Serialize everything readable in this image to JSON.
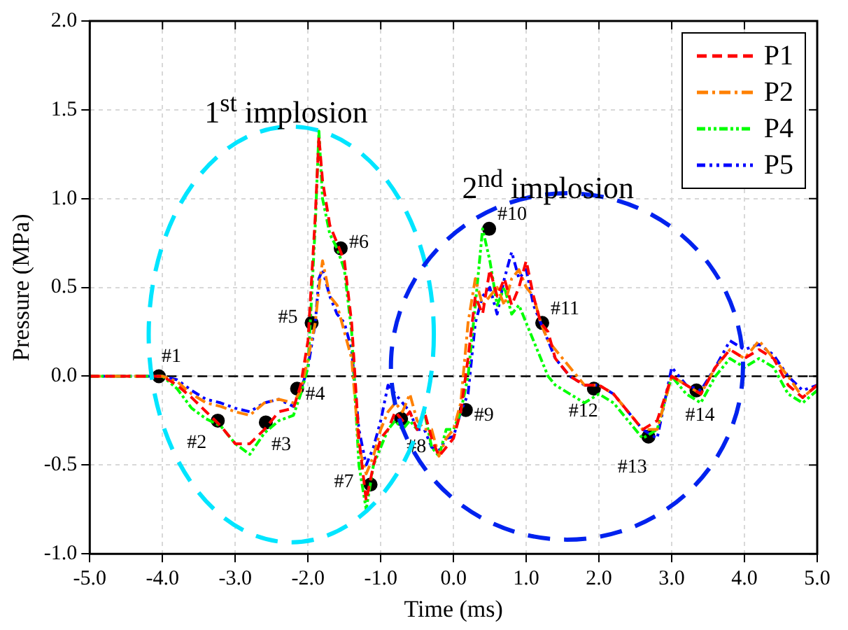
{
  "chart_data": {
    "type": "line",
    "xlabel": "Time (ms)",
    "ylabel": "Pressure (MPa)",
    "x": [
      -5,
      -4.6,
      -4.2,
      -4.0,
      -3.8,
      -3.6,
      -3.4,
      -3.2,
      -3.0,
      -2.8,
      -2.6,
      -2.4,
      -2.2,
      -2.1,
      -2.0,
      -1.9,
      -1.85,
      -1.8,
      -1.7,
      -1.6,
      -1.5,
      -1.4,
      -1.3,
      -1.2,
      -1.1,
      -1.0,
      -0.9,
      -0.8,
      -0.7,
      -0.6,
      -0.5,
      -0.4,
      -0.3,
      -0.2,
      -0.1,
      0,
      0.1,
      0.2,
      0.3,
      0.4,
      0.5,
      0.6,
      0.7,
      0.8,
      0.9,
      1.0,
      1.1,
      1.2,
      1.3,
      1.4,
      1.6,
      1.8,
      2.0,
      2.2,
      2.4,
      2.6,
      2.8,
      3.0,
      3.2,
      3.4,
      3.6,
      3.8,
      4.0,
      4.2,
      4.4,
      4.6,
      4.8,
      5.0
    ],
    "series": [
      {
        "name": "P1",
        "color": "#ff0000",
        "line_style": "dashed",
        "values": [
          0,
          0,
          0,
          0,
          -0.05,
          -0.12,
          -0.2,
          -0.28,
          -0.38,
          -0.38,
          -0.3,
          -0.2,
          -0.18,
          -0.05,
          0.2,
          0.9,
          1.35,
          1.1,
          0.85,
          0.75,
          0.65,
          0.3,
          -0.35,
          -0.7,
          -0.5,
          -0.35,
          -0.3,
          -0.2,
          -0.25,
          -0.2,
          -0.3,
          -0.2,
          -0.35,
          -0.45,
          -0.4,
          -0.35,
          -0.2,
          0.1,
          0.45,
          0.35,
          0.6,
          0.45,
          0.55,
          0.4,
          0.5,
          0.65,
          0.45,
          0.3,
          0.25,
          0.1,
          0,
          -0.05,
          -0.05,
          -0.1,
          -0.2,
          -0.3,
          -0.25,
          0,
          -0.05,
          -0.1,
          0.05,
          0.15,
          0.1,
          0.15,
          0.1,
          -0.05,
          -0.12,
          -0.05
        ]
      },
      {
        "name": "P2",
        "color": "#ff8000",
        "line_style": "dashed",
        "values": [
          0,
          0,
          0,
          0,
          -0.03,
          -0.1,
          -0.15,
          -0.17,
          -0.2,
          -0.22,
          -0.15,
          -0.13,
          -0.15,
          -0.08,
          0.1,
          0.3,
          0.5,
          0.65,
          0.45,
          0.4,
          0.25,
          0.1,
          -0.4,
          -0.55,
          -0.45,
          -0.3,
          -0.2,
          -0.15,
          -0.2,
          -0.1,
          -0.25,
          -0.3,
          -0.3,
          -0.45,
          -0.35,
          -0.3,
          -0.15,
          0.3,
          0.55,
          0.4,
          0.45,
          0.5,
          0.4,
          0.55,
          0.6,
          0.5,
          0.45,
          0.3,
          0.2,
          0.15,
          0.05,
          -0.05,
          -0.05,
          -0.1,
          -0.2,
          -0.3,
          -0.3,
          0,
          -0.05,
          -0.1,
          0.05,
          0.15,
          0.1,
          0.2,
          0.1,
          0,
          -0.12,
          -0.05
        ]
      },
      {
        "name": "P4",
        "color": "#00ff00",
        "line_style": "dashed",
        "values": [
          0,
          0,
          0,
          0,
          -0.07,
          -0.18,
          -0.24,
          -0.28,
          -0.38,
          -0.44,
          -0.32,
          -0.25,
          -0.22,
          -0.1,
          0.05,
          0.85,
          1.38,
          1.0,
          0.8,
          0.72,
          0.6,
          0.25,
          -0.5,
          -0.75,
          -0.5,
          -0.4,
          -0.3,
          -0.25,
          -0.3,
          -0.25,
          -0.3,
          -0.2,
          -0.4,
          -0.45,
          -0.3,
          -0.3,
          -0.2,
          0,
          0.4,
          0.83,
          0.65,
          0.4,
          0.5,
          0.35,
          0.4,
          0.3,
          0.2,
          0.1,
          0,
          -0.05,
          -0.1,
          -0.15,
          -0.1,
          -0.15,
          -0.25,
          -0.35,
          -0.3,
          0,
          -0.1,
          -0.15,
          0,
          0.1,
          0.05,
          0.1,
          0.05,
          -0.1,
          -0.15,
          -0.08
        ]
      },
      {
        "name": "P5",
        "color": "#0000ff",
        "line_style": "dashed",
        "values": [
          0,
          0,
          0,
          0,
          -0.02,
          -0.08,
          -0.13,
          -0.15,
          -0.18,
          -0.2,
          -0.15,
          -0.13,
          -0.17,
          -0.08,
          0.05,
          0.3,
          0.55,
          0.6,
          0.45,
          0.35,
          0.3,
          0.15,
          -0.3,
          -0.5,
          -0.4,
          -0.25,
          -0.05,
          -0.1,
          -0.15,
          -0.2,
          -0.3,
          -0.3,
          -0.4,
          -0.42,
          -0.35,
          -0.34,
          -0.2,
          -0.1,
          0.3,
          0.45,
          0.5,
          0.35,
          0.55,
          0.7,
          0.55,
          0.6,
          0.4,
          0.3,
          0.2,
          0.1,
          0,
          -0.05,
          -0.05,
          -0.1,
          -0.2,
          -0.3,
          -0.35,
          0.05,
          -0.05,
          -0.08,
          0.05,
          0.2,
          0.15,
          0.18,
          0.12,
          0,
          -0.08,
          -0.05
        ]
      },
      {
        "type": "scatter",
        "color": "#000000",
        "marker": "circle",
        "x": [
          -4.05,
          -3.24,
          -2.58,
          -2.15,
          -1.95,
          -1.55,
          -1.14,
          -0.72,
          0.17,
          0.49,
          1.22,
          1.93,
          2.68,
          3.34
        ],
        "values": [
          0,
          -0.25,
          -0.26,
          -0.07,
          0.3,
          0.72,
          -0.61,
          -0.24,
          -0.19,
          0.83,
          0.3,
          -0.07,
          -0.34,
          -0.08
        ]
      }
    ],
    "xlim": [
      -5,
      5
    ],
    "xticks": [
      {
        "value": -5,
        "label": "-5.0"
      },
      {
        "value": -4,
        "label": "-4.0"
      },
      {
        "value": -3,
        "label": "-3.0"
      },
      {
        "value": -2,
        "label": "-2.0"
      },
      {
        "value": -1,
        "label": "-1.0"
      },
      {
        "value": 0,
        "label": "0.0"
      },
      {
        "value": 1,
        "label": "1.0"
      },
      {
        "value": 2,
        "label": "2.0"
      },
      {
        "value": 3,
        "label": "3.0"
      },
      {
        "value": 4,
        "label": "4.0"
      },
      {
        "value": 5,
        "label": "5.0"
      }
    ],
    "ylim": [
      -1,
      2
    ],
    "yticks": [
      {
        "value": -1,
        "label": "-1.0"
      },
      {
        "value": -0.5,
        "label": "-0.5"
      },
      {
        "value": 0,
        "label": "0.0"
      },
      {
        "value": 0.5,
        "label": "0.5"
      },
      {
        "value": 1,
        "label": "1.0"
      },
      {
        "value": 1.5,
        "label": "1.5"
      },
      {
        "value": 2,
        "label": "2.0"
      }
    ],
    "ref_lines": [
      {
        "axis": "y",
        "value": 0,
        "color": "#000000",
        "line_style": "dashed"
      }
    ],
    "annotations": [
      "1$^{st}$ implosion",
      "2$^{nd}$ implosion",
      {
        "text": "#1",
        "x": -4.05,
        "y": 0
      },
      {
        "text": "#2",
        "x": -3.24,
        "y": -0.25
      },
      {
        "text": "#3",
        "x": -2.58,
        "y": -0.26
      },
      {
        "text": "#4",
        "x": -2.15,
        "y": -0.07
      },
      {
        "text": "#5",
        "x": -1.95,
        "y": 0.3
      },
      {
        "text": "#6",
        "x": -1.55,
        "y": 0.72
      },
      {
        "text": "#7",
        "x": -1.14,
        "y": -0.61
      },
      {
        "text": "#8",
        "x": -0.72,
        "y": -0.24
      },
      {
        "text": "#9",
        "x": 0.17,
        "y": -0.19
      },
      {
        "text": "#10",
        "x": 0.49,
        "y": 0.83
      },
      {
        "text": "#11",
        "x": 1.22,
        "y": 0.3
      },
      {
        "text": "#12",
        "x": 1.93,
        "y": -0.07
      },
      {
        "text": "#13",
        "x": 2.68,
        "y": -0.34
      },
      {
        "text": "#14",
        "x": 3.34,
        "y": -0.08
      }
    ],
    "grid": true,
    "legend": "top right"
  }
}
